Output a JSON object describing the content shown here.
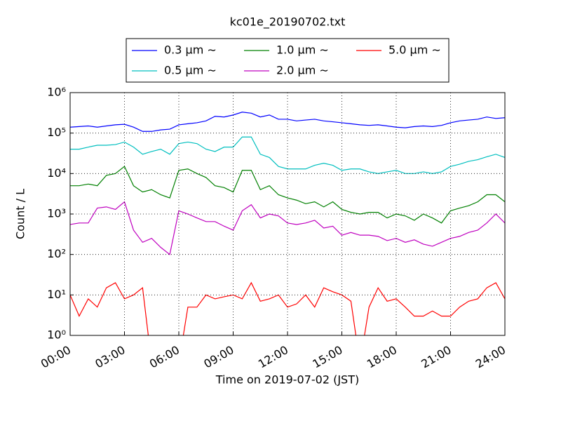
{
  "chart_data": {
    "type": "line",
    "title": "kc01e_20190702.txt",
    "xlabel": "Time on 2019-07-02 (JST)",
    "ylabel": "Count / L",
    "log_y": true,
    "grid": true,
    "legend_position": "top",
    "legend_columns": 3,
    "xlim": [
      0,
      24
    ],
    "ylim": [
      1,
      1000000
    ],
    "xticks": [
      {
        "value": 0,
        "label": "00:00"
      },
      {
        "value": 3,
        "label": "03:00"
      },
      {
        "value": 6,
        "label": "06:00"
      },
      {
        "value": 9,
        "label": "09:00"
      },
      {
        "value": 12,
        "label": "12:00"
      },
      {
        "value": 15,
        "label": "15:00"
      },
      {
        "value": 18,
        "label": "18:00"
      },
      {
        "value": 21,
        "label": "21:00"
      },
      {
        "value": 24,
        "label": "24:00"
      }
    ],
    "yticks": [
      {
        "value": 1,
        "label": "10⁰"
      },
      {
        "value": 10,
        "label": "10¹"
      },
      {
        "value": 100,
        "label": "10²"
      },
      {
        "value": 1000,
        "label": "10³"
      },
      {
        "value": 10000,
        "label": "10⁴"
      },
      {
        "value": 100000,
        "label": "10⁵"
      },
      {
        "value": 1000000,
        "label": "10⁶"
      }
    ],
    "x": [
      0,
      0.5,
      1,
      1.5,
      2,
      2.5,
      3,
      3.5,
      4,
      4.5,
      5,
      5.5,
      6,
      6.5,
      7,
      7.5,
      8,
      8.5,
      9,
      9.5,
      10,
      10.5,
      11,
      11.5,
      12,
      12.5,
      13,
      13.5,
      14,
      14.5,
      15,
      15.5,
      16,
      16.5,
      17,
      17.5,
      18,
      18.5,
      19,
      19.5,
      20,
      20.5,
      21,
      21.5,
      22,
      22.5,
      23,
      23.5,
      24
    ],
    "series": [
      {
        "name": "0.3 μm ∼",
        "color": "#0000ff",
        "values": [
          140000,
          145000,
          150000,
          140000,
          150000,
          160000,
          165000,
          140000,
          110000,
          110000,
          120000,
          125000,
          160000,
          170000,
          180000,
          200000,
          260000,
          250000,
          280000,
          330000,
          310000,
          250000,
          280000,
          220000,
          220000,
          200000,
          210000,
          220000,
          200000,
          190000,
          180000,
          170000,
          160000,
          155000,
          160000,
          150000,
          140000,
          135000,
          145000,
          150000,
          145000,
          155000,
          180000,
          200000,
          210000,
          220000,
          250000,
          230000,
          240000
        ]
      },
      {
        "name": "0.5 μm ∼",
        "color": "#00bfbf",
        "values": [
          40000,
          40000,
          45000,
          50000,
          50000,
          52000,
          60000,
          45000,
          30000,
          35000,
          40000,
          30000,
          55000,
          60000,
          55000,
          40000,
          35000,
          45000,
          45000,
          80000,
          80000,
          30000,
          25000,
          15000,
          13000,
          13000,
          13000,
          16000,
          18000,
          16000,
          12000,
          13000,
          13000,
          11000,
          10000,
          11000,
          12000,
          10000,
          10000,
          11000,
          10000,
          11000,
          15000,
          17000,
          20000,
          22000,
          26000,
          30000,
          25000
        ]
      },
      {
        "name": "1.0 μm ∼",
        "color": "#008000",
        "values": [
          5000,
          5000,
          5500,
          5000,
          9000,
          10000,
          15000,
          5000,
          3500,
          4000,
          3000,
          2500,
          12000,
          13000,
          10000,
          8000,
          5000,
          4500,
          3500,
          12000,
          12000,
          4000,
          5000,
          3000,
          2500,
          2200,
          1800,
          2000,
          1500,
          2000,
          1300,
          1100,
          1000,
          1100,
          1100,
          800,
          1000,
          900,
          700,
          1000,
          800,
          600,
          1200,
          1400,
          1600,
          2000,
          3000,
          3000,
          2000
        ]
      },
      {
        "name": "2.0 μm ∼",
        "color": "#bf00bf",
        "values": [
          550,
          600,
          600,
          1400,
          1500,
          1300,
          2000,
          400,
          200,
          250,
          150,
          100,
          1200,
          1000,
          800,
          650,
          650,
          500,
          400,
          1200,
          1700,
          800,
          1000,
          900,
          600,
          550,
          600,
          700,
          450,
          500,
          300,
          350,
          300,
          300,
          280,
          220,
          250,
          200,
          230,
          180,
          160,
          200,
          250,
          280,
          350,
          400,
          600,
          1000,
          600
        ]
      },
      {
        "name": "5.0 μm ∼",
        "color": "#ff0000",
        "values": [
          10,
          3,
          8,
          5,
          15,
          20,
          8,
          10,
          15,
          0,
          0,
          0,
          0,
          5,
          5,
          10,
          8,
          9,
          10,
          8,
          20,
          7,
          8,
          10,
          5,
          6,
          10,
          5,
          15,
          12,
          10,
          7,
          0,
          5,
          15,
          7,
          8,
          5,
          3,
          3,
          4,
          3,
          3,
          5,
          7,
          8,
          15,
          20,
          8
        ]
      }
    ]
  }
}
